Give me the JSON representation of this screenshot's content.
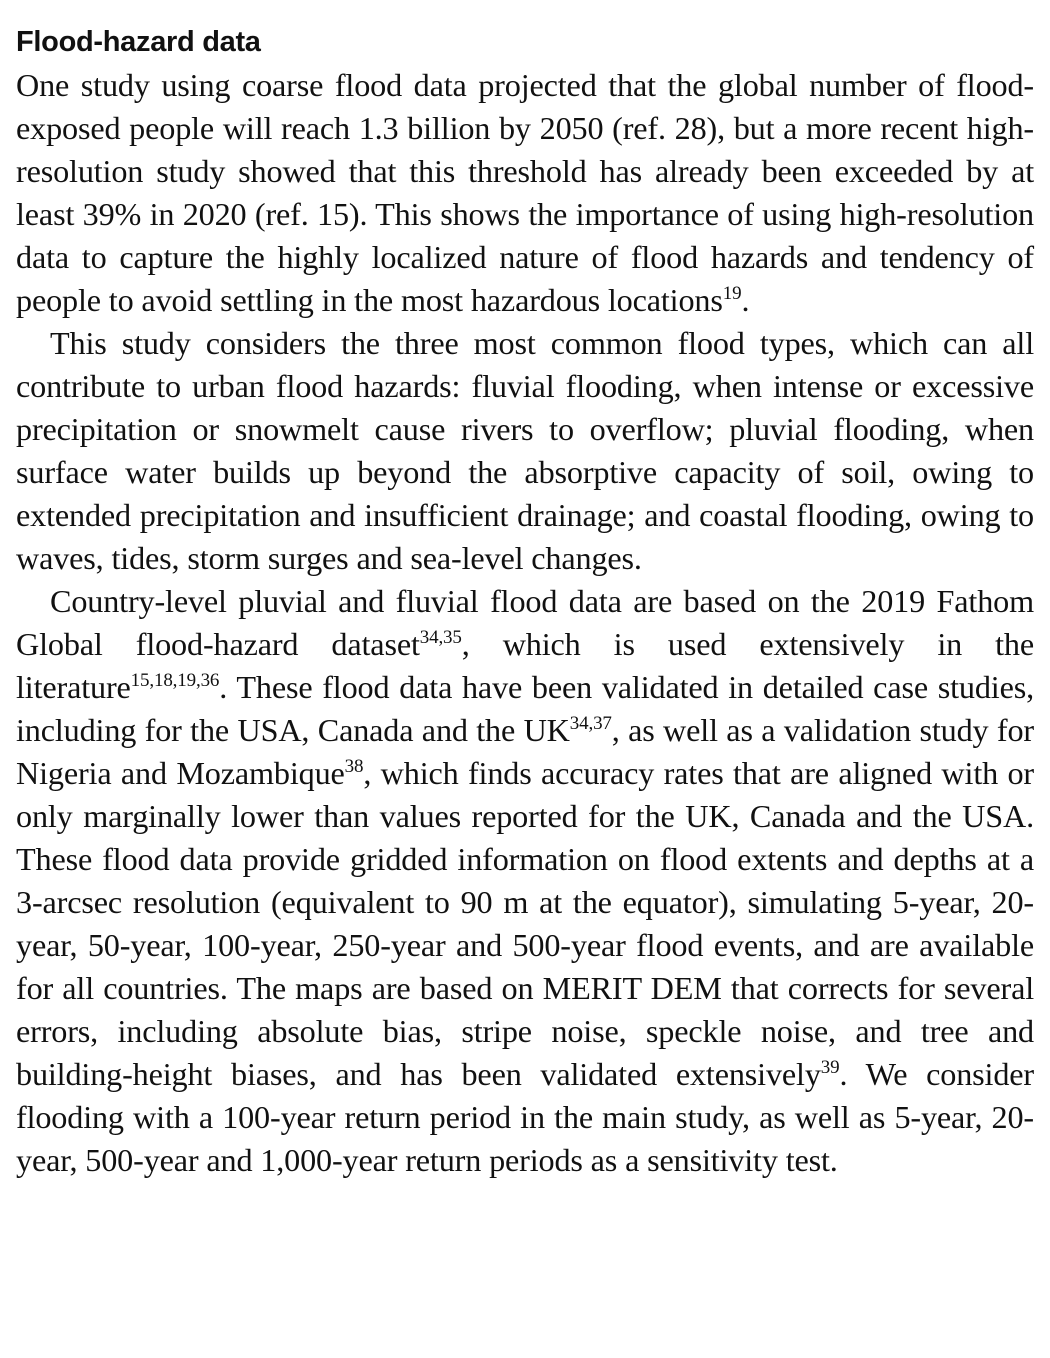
{
  "section": {
    "heading": "Flood-hazard data"
  },
  "paragraphs": [
    {
      "runs": [
        {
          "text": "One study using coarse flood data projected that the global number of flood-exposed people will reach 1.3 billion by 2050 (ref. 28), but a more recent high-resolution study showed that this threshold has already been exceeded by at least 39% in 2020 (ref. 15). This shows the importance of using high-resolution data to capture the highly local­ized nature of flood hazards and tendency of people to avoid settling in the most hazardous locations"
        },
        {
          "sup": "19"
        },
        {
          "text": "."
        }
      ]
    },
    {
      "runs": [
        {
          "text": "This study considers the three most common flood types, which can all contribute to urban flood hazards: fluvial flooding, when intense or excessive precipitation or snowmelt cause rivers to overflow; pluvial flooding, when surface water builds up beyond the absorptive capac­ity of soil, owing to extended precipitation and insufficient drainage; and coastal flooding, owing to waves, tides, storm surges and sea-level changes."
        }
      ]
    },
    {
      "runs": [
        {
          "text": "Country-level pluvial and fluvial flood data are based on the 2019 Fathom Global flood-hazard dataset"
        },
        {
          "sup": "34,35"
        },
        {
          "text": ", which is used extensively in the literature"
        },
        {
          "sup": "15,18,19,36"
        },
        {
          "text": ". These flood data have been validated in detailed case studies, including for the USA, Canada and the UK"
        },
        {
          "sup": "34,37"
        },
        {
          "text": ", as well as a validation study for Nigeria and Mozambique"
        },
        {
          "sup": "38"
        },
        {
          "text": ", which finds accuracy rates that are aligned with or only marginally lower than values reported for the UK, Canada and the USA. These flood data provide gridded information on flood extents and depths at a 3-arcsec resolution (equivalent to 90 m at the equator), simulating 5-year, 20-year, 50-year, 100-year, 250-year and 500-year flood events, and are available for all countries. The maps are based on MERIT DEM that corrects for several errors, including absolute bias, stripe noise, speckle noise, and tree and building-height biases, and has been validated extensively"
        },
        {
          "sup": "39"
        },
        {
          "text": ". We consider flooding with a 100-year return period in the main study, as well as 5-year, 20-year, 500-year and 1,000-year return periods as a sensitivity test."
        }
      ]
    }
  ]
}
